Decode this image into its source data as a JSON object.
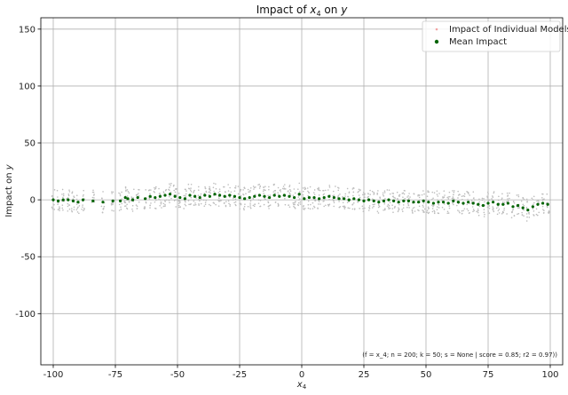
{
  "chart_data": {
    "type": "scatter",
    "title": "Impact of x4 on y",
    "title_parts": {
      "prefix": "Impact of ",
      "var": "x",
      "sub": "4",
      "mid": " on ",
      "target": "y"
    },
    "xlabel": {
      "var": "x",
      "sub": "4"
    },
    "ylabel": {
      "prefix": "Impact on ",
      "var": "y"
    },
    "xlim": [
      -105,
      105
    ],
    "ylim": [
      -145,
      160
    ],
    "xticks": [
      -100,
      -75,
      -50,
      -25,
      0,
      25,
      50,
      75,
      100
    ],
    "xtick_labels": [
      "-100",
      "-75",
      "-50",
      "-25",
      "0",
      "25",
      "50",
      "75",
      "100"
    ],
    "yticks": [
      -100,
      -50,
      0,
      50,
      100,
      150
    ],
    "ytick_labels": [
      "-100",
      "-50",
      "0",
      "50",
      "100",
      "150"
    ],
    "grid": true,
    "legend": {
      "placement": "top-right",
      "entries": [
        "Impact of Individual Models",
        "Mean Impact"
      ]
    },
    "colors": {
      "individual": "#bdbdbd",
      "mean": "#006400",
      "grid": "#b0b0b0"
    },
    "footnote": "(f = x_4; n = 200; k = 50; s = None | score = 0.85; r2 = 0.97))",
    "series": [
      {
        "name": "Mean Impact",
        "x": [
          -100,
          -98,
          -96,
          -94,
          -92,
          -90,
          -88,
          -84,
          -80,
          -76,
          -73,
          -71,
          -70,
          -68,
          -66,
          -63,
          -61,
          -59,
          -57,
          -55,
          -53,
          -51,
          -49,
          -47,
          -45,
          -43,
          -41,
          -39,
          -37,
          -35,
          -33,
          -31,
          -29,
          -27,
          -25,
          -23,
          -21,
          -19,
          -17,
          -15,
          -13,
          -11,
          -9,
          -7,
          -5,
          -3,
          -1,
          1,
          3,
          5,
          7,
          9,
          11,
          13,
          15,
          17,
          19,
          21,
          23,
          25,
          27,
          29,
          31,
          33,
          35,
          37,
          39,
          41,
          43,
          45,
          47,
          49,
          51,
          53,
          55,
          57,
          59,
          61,
          63,
          65,
          67,
          69,
          71,
          73,
          75,
          77,
          79,
          81,
          83,
          85,
          87,
          89,
          91,
          93,
          95,
          97,
          99
        ],
        "y": [
          0,
          -1,
          0,
          0,
          -1,
          -2,
          0,
          -1,
          -2,
          -1,
          -1,
          2,
          1,
          0,
          2,
          1,
          3,
          2,
          3,
          4,
          5,
          3,
          2,
          1,
          4,
          3,
          2,
          4,
          3,
          5,
          4,
          3,
          4,
          3,
          2,
          1,
          2,
          3,
          4,
          3,
          2,
          4,
          3,
          4,
          3,
          2,
          5,
          1,
          2,
          2,
          1,
          2,
          3,
          2,
          1,
          1,
          0,
          1,
          0,
          -1,
          0,
          -1,
          -2,
          -1,
          0,
          -1,
          -2,
          -1,
          -1,
          -2,
          -2,
          -1,
          -2,
          -3,
          -2,
          -2,
          -3,
          -1,
          -2,
          -3,
          -2,
          -3,
          -4,
          -5,
          -3,
          -2,
          -4,
          -4,
          -3,
          -6,
          -5,
          -7,
          -9,
          -6,
          -4,
          -3,
          -4
        ]
      }
    ]
  }
}
